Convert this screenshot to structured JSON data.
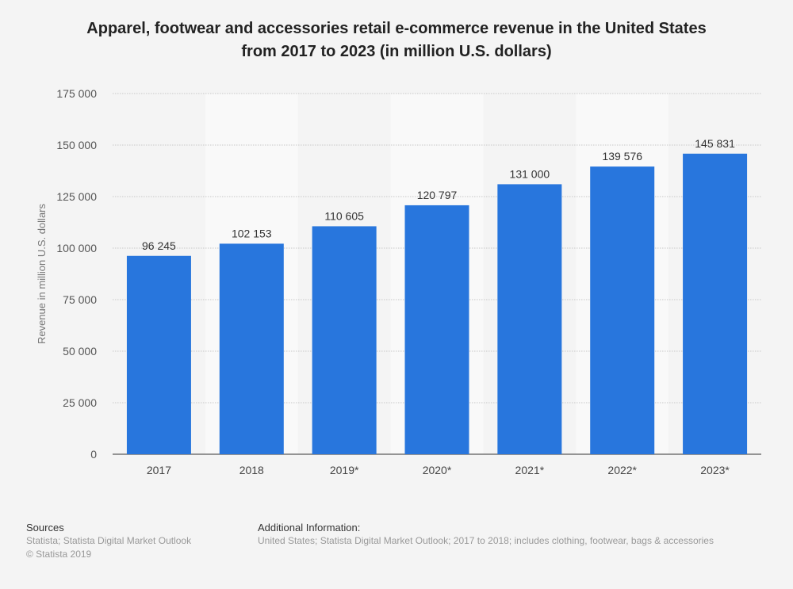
{
  "chart_data": {
    "type": "bar",
    "title": "Apparel, footwear and accessories retail e-commerce revenue in the United States from 2017 to 2023 (in million U.S. dollars)",
    "title_lines": [
      "Apparel, footwear and accessories retail e-commerce revenue in the United States",
      "from 2017 to 2023 (in million U.S. dollars)"
    ],
    "categories": [
      "2017",
      "2018",
      "2019*",
      "2020*",
      "2021*",
      "2022*",
      "2023*"
    ],
    "values": [
      96245,
      102153,
      110605,
      120797,
      131000,
      139576,
      145831
    ],
    "value_labels": [
      "96 245",
      "102 153",
      "110 605",
      "120 797",
      "131 000",
      "139 576",
      "145 831"
    ],
    "xlabel": "",
    "ylabel": "Revenue in million U.S. dollars",
    "ylim": [
      0,
      175000
    ],
    "yticks": [
      0,
      25000,
      50000,
      75000,
      100000,
      125000,
      150000,
      175000
    ],
    "ytick_labels": [
      "0",
      "25 000",
      "50 000",
      "75 000",
      "100 000",
      "125 000",
      "150 000",
      "175 000"
    ],
    "grid": true,
    "bar_color": "#2876dd",
    "legend": "none"
  },
  "footer": {
    "sources_heading": "Sources",
    "sources": [
      "Statista; Statista Digital Market Outlook",
      "© Statista 2019"
    ],
    "additional_heading": "Additional Information:",
    "additional_text": "United States; Statista Digital Market Outlook; 2017 to 2018; includes clothing, footwear, bags & accessories"
  }
}
